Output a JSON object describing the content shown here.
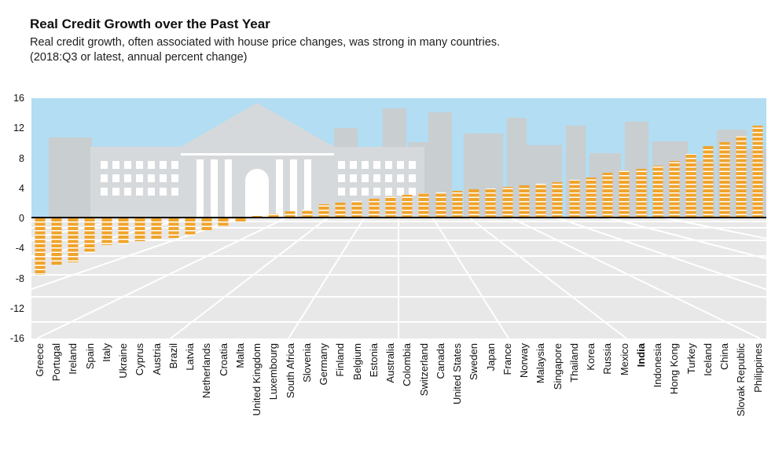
{
  "header": {
    "title": "Real Credit Growth over the Past Year",
    "subtitle": "Real credit growth, often associated with house price changes, was strong in many countries.",
    "note": "(2018:Q3 or latest, annual percent change)"
  },
  "chart_data": {
    "type": "bar",
    "title": "Real Credit Growth over the Past Year",
    "subtitle": "Real credit growth, often associated with house price changes, was strong in many countries.",
    "units_note": "(2018:Q3 or latest, annual percent change)",
    "categories": [
      "Greece",
      "Portugal",
      "Ireland",
      "Spain",
      "Italy",
      "Ukraine",
      "Cyprus",
      "Austria",
      "Brazil",
      "Latvia",
      "Netherlands",
      "Croatia",
      "Malta",
      "United Kingdom",
      "Luxembourg",
      "South Africa",
      "Slovenia",
      "Germany",
      "Finland",
      "Belgium",
      "Estonia",
      "Australia",
      "Colombia",
      "Switzerland",
      "Canada",
      "United States",
      "Sweden",
      "Japan",
      "France",
      "Norway",
      "Malaysia",
      "Singapore",
      "Thailand",
      "Korea",
      "Russia",
      "Mexico",
      "India",
      "Indonesia",
      "Hong Kong",
      "Turkey",
      "Iceland",
      "China",
      "Slovak Republic",
      "Philippines"
    ],
    "values": [
      -7.5,
      -6.2,
      -5.8,
      -4.6,
      -3.6,
      -3.4,
      -3.0,
      -2.8,
      -2.6,
      -2.3,
      -1.6,
      -1.0,
      -0.4,
      0.3,
      0.6,
      0.9,
      1.2,
      1.9,
      2.1,
      2.3,
      2.6,
      2.9,
      3.1,
      3.3,
      3.5,
      3.7,
      3.9,
      4.0,
      4.2,
      4.4,
      4.6,
      4.8,
      5.1,
      5.4,
      6.1,
      6.4,
      6.6,
      7.0,
      7.6,
      8.6,
      9.6,
      10.1,
      11.0,
      12.3
    ],
    "highlighted_category": "India",
    "xlabel": "",
    "ylabel": "",
    "ylim": [
      -16,
      16
    ],
    "yticks": [
      16,
      12,
      8,
      4,
      0,
      -4,
      -8,
      -12,
      -16
    ],
    "grid": false,
    "legend": "none",
    "bar_color": "#f0a42c",
    "bar_stripe_color": "#ffffff",
    "sky_color": "#b3ddf2",
    "floor_color": "#e8e8e8",
    "silhouette_color": "#c9ced1",
    "temple_color": "#d6d9db",
    "zero_line_color": "#000000"
  }
}
